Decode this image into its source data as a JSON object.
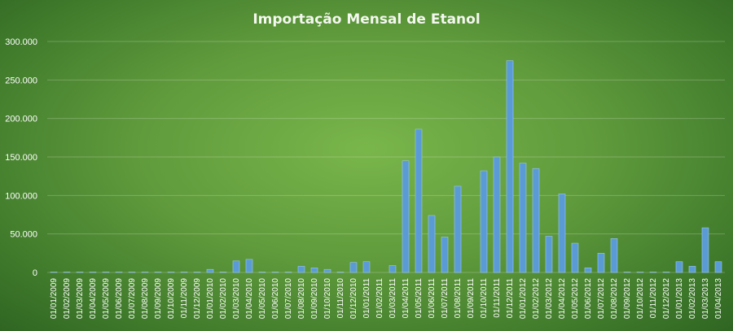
{
  "chart_data": {
    "type": "bar",
    "title": "Importação Mensal de Etanol",
    "xlabel": "",
    "ylabel": "",
    "ylim": [
      0,
      300000
    ],
    "yticks": [
      "0",
      "50.000",
      "100.000",
      "150.000",
      "200.000",
      "250.000",
      "300.000"
    ],
    "grid": true,
    "legend": "none",
    "bar_color": "#5b9bd5",
    "background": "#5f9a3c",
    "categories": [
      "01/01/2009",
      "01/02/2009",
      "01/03/2009",
      "01/04/2009",
      "01/05/2009",
      "01/06/2009",
      "01/07/2009",
      "01/08/2009",
      "01/09/2009",
      "01/10/2009",
      "01/11/2009",
      "01/12/2009",
      "01/01/2010",
      "01/02/2010",
      "01/03/2010",
      "01/04/2010",
      "01/05/2010",
      "01/06/2010",
      "01/07/2010",
      "01/08/2010",
      "01/09/2010",
      "01/10/2010",
      "01/11/2010",
      "01/12/2010",
      "01/01/2011",
      "01/02/2011",
      "01/03/2011",
      "01/04/2011",
      "01/05/2011",
      "01/06/2011",
      "01/07/2011",
      "01/08/2011",
      "01/09/2011",
      "01/10/2011",
      "01/11/2011",
      "01/12/2011",
      "01/01/2012",
      "01/02/2012",
      "01/03/2012",
      "01/04/2012",
      "01/05/2012",
      "01/06/2012",
      "01/07/2012",
      "01/08/2012",
      "01/09/2012",
      "01/10/2012",
      "01/11/2012",
      "01/12/2012",
      "01/01/2013",
      "01/02/2013",
      "01/03/2013",
      "01/04/2013"
    ],
    "values": [
      500,
      500,
      500,
      500,
      500,
      500,
      500,
      500,
      500,
      500,
      500,
      500,
      4000,
      500,
      15000,
      17000,
      500,
      500,
      500,
      8000,
      6000,
      4000,
      500,
      13000,
      14000,
      0,
      9000,
      145000,
      186000,
      74000,
      46000,
      112000,
      0,
      132000,
      150000,
      275000,
      142000,
      135000,
      47000,
      102000,
      38000,
      6000,
      25000,
      44000,
      500,
      500,
      500,
      500,
      14000,
      8000,
      58000,
      14000
    ]
  }
}
